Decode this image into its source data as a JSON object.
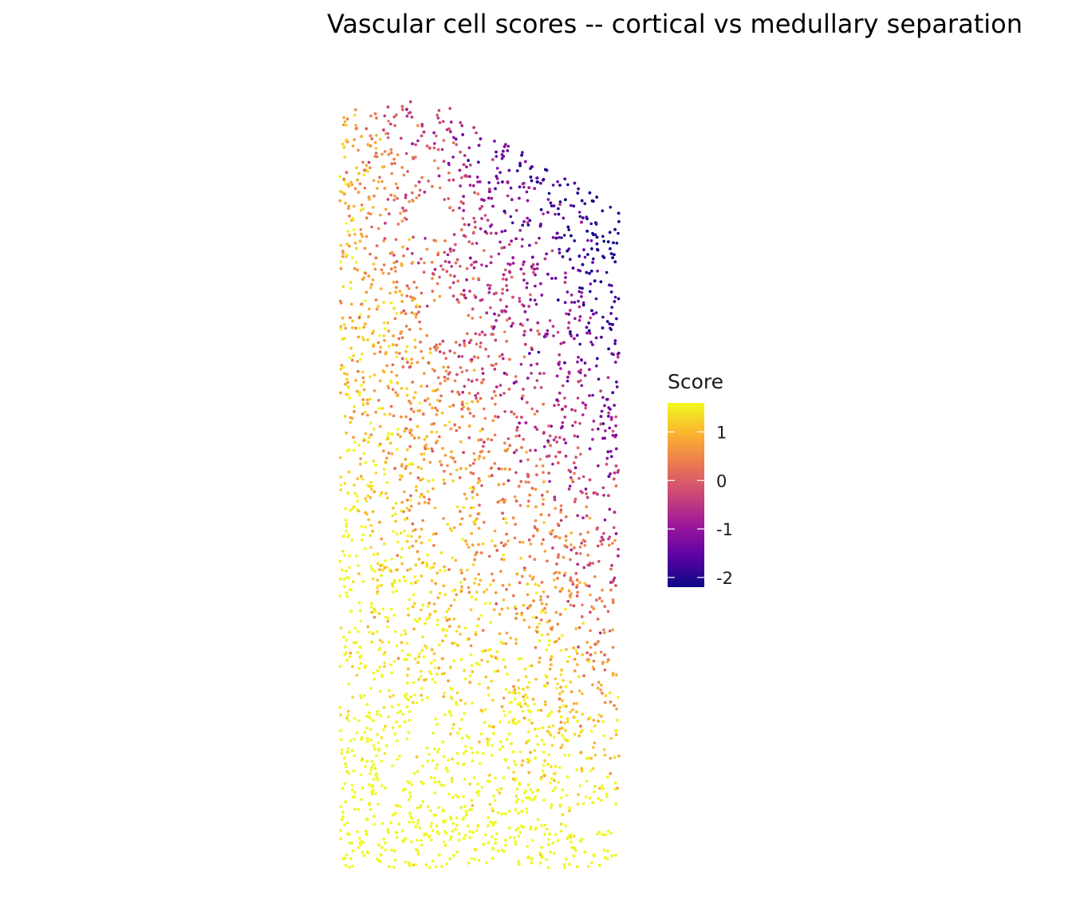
{
  "chart_data": {
    "type": "scatter",
    "title": "Vascular cell scores -- cortical vs medullary separation",
    "xlabel": "",
    "ylabel": "",
    "grid": false,
    "axes_visible": false,
    "x_range": [
      0,
      1
    ],
    "y_range": [
      0,
      1
    ],
    "color_scale": {
      "name": "plasma",
      "title": "Score",
      "range": [
        -2.2,
        1.6
      ],
      "ticks": [
        {
          "value": 1,
          "label": "1"
        },
        {
          "value": 0,
          "label": "0"
        },
        {
          "value": -1,
          "label": "-1"
        },
        {
          "value": -2,
          "label": "-2"
        }
      ],
      "stops": [
        "#0d0887",
        "#5b02a3",
        "#9a179b",
        "#cb4678",
        "#eb7852",
        "#fbb32f",
        "#f0f921"
      ]
    },
    "legend_position": "right",
    "point_count": 6000,
    "score_gradient": "low (-2) in the upper-right cortical region, high (~1.5) in the lower-left medullary region"
  }
}
